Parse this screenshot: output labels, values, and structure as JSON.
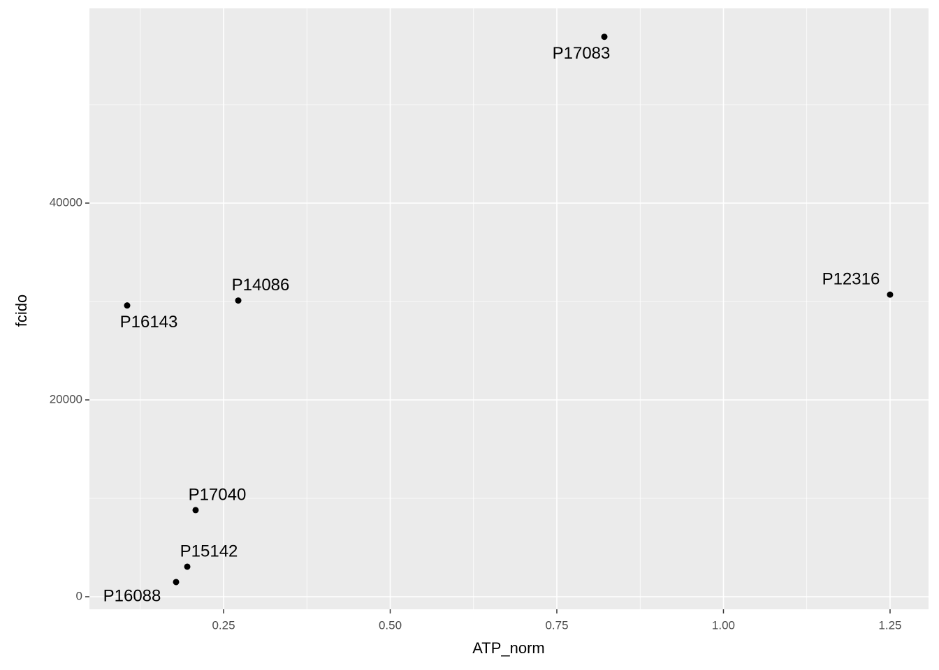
{
  "chart_data": {
    "type": "scatter",
    "x_label": "ATP_norm",
    "y_label": "fcido",
    "x": [
      0.8213,
      1.25,
      0.272,
      0.1053,
      0.208,
      0.1955,
      0.1787
    ],
    "values": [
      56900,
      30700,
      30100,
      29600,
      8800,
      3050,
      1490
    ],
    "labels": [
      "P17083",
      "P12316",
      "P14086",
      "P16143",
      "P17040",
      "P15142",
      "P16088"
    ],
    "color": "#000000",
    "xlim": [
      0.0487,
      1.3077
    ],
    "ylim": [
      -1277,
      59787
    ],
    "xticks": [
      0.25,
      {
        "value": 0.5,
        "label": "0.50"
      },
      0.75,
      {
        "value": 1.0,
        "label": "1.00"
      },
      1.25
    ],
    "yticks": [
      0,
      20000,
      40000
    ],
    "grid": true,
    "background": "#ebebeb"
  }
}
